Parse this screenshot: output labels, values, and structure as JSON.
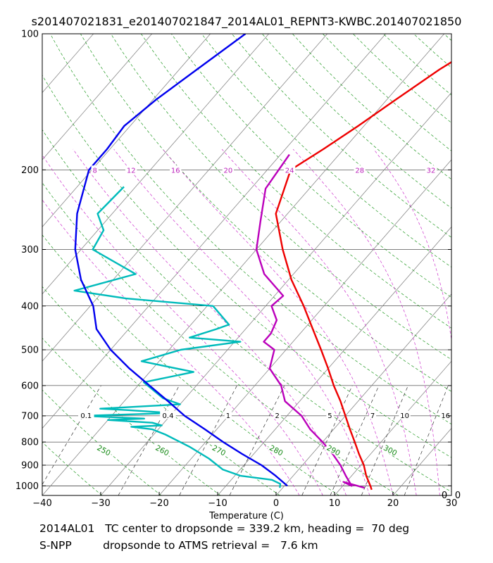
{
  "chart_data": {
    "type": "skew-t",
    "title": "s201407021831_e201407021847_2014AL01_REPNT3-KWBC.201407021850",
    "xlabel": "Temperature (C)",
    "ylabel": "",
    "xlim": [
      -40,
      30
    ],
    "ylim": [
      1050,
      100
    ],
    "x_ticks": [
      -40,
      -30,
      -20,
      -10,
      0,
      10,
      20,
      30
    ],
    "x_tick_labels": [
      "−40",
      "−30",
      "−20",
      "−10",
      "0",
      "10",
      "20",
      "30"
    ],
    "p_ticks": [
      100,
      200,
      300,
      400,
      500,
      600,
      700,
      800,
      900,
      1000
    ],
    "p_tick_labels": [
      "100",
      "200",
      "300",
      "400",
      "500",
      "600",
      "700",
      "800",
      "900",
      "1000"
    ],
    "corner_labels": [
      "0",
      "0"
    ],
    "mixing_ratio_labels": {
      "pressure": 700,
      "entries": [
        {
          "label": "0.1",
          "x": -32.5
        },
        {
          "label": "0.4",
          "x": -18.5
        },
        {
          "label": "1",
          "x": -8.2
        },
        {
          "label": "2",
          "x": 0.2
        },
        {
          "label": "5",
          "x": 9.2
        },
        {
          "label": "7",
          "x": 16.5
        },
        {
          "label": "10",
          "x": 22
        },
        {
          "label": "16",
          "x": 29
        }
      ]
    },
    "dry_adiabat_labels": {
      "entries": [
        {
          "label": "250",
          "x": -29.5,
          "p": 830
        },
        {
          "label": "260",
          "x": -19.5,
          "p": 830
        },
        {
          "label": "270",
          "x": -9.8,
          "p": 830
        },
        {
          "label": "280",
          "x": 0,
          "p": 830
        },
        {
          "label": "290",
          "x": 9.8,
          "p": 830
        },
        {
          "label": "300",
          "x": 19.5,
          "p": 830
        }
      ]
    },
    "moist_adiabat_labels": {
      "pressure": 200,
      "entries": [
        {
          "label": "8",
          "x": -31
        },
        {
          "label": "12",
          "x": -24.8
        },
        {
          "label": "16",
          "x": -17.2
        },
        {
          "label": "20",
          "x": -8.2
        },
        {
          "label": "24",
          "x": 2.3
        },
        {
          "label": "28",
          "x": 14.3
        },
        {
          "label": "32",
          "x": 26.5
        }
      ]
    },
    "series": [
      {
        "name": "Temperature",
        "color": "#ee0000",
        "points": [
          [
            100,
            -31
          ],
          [
            120,
            -35.5
          ],
          [
            140,
            -38.5
          ],
          [
            160,
            -41
          ],
          [
            180,
            -43.5
          ],
          [
            200,
            -46
          ],
          [
            250,
            -42
          ],
          [
            300,
            -35.5
          ],
          [
            350,
            -29.5
          ],
          [
            400,
            -23.5
          ],
          [
            450,
            -18.5
          ],
          [
            500,
            -14
          ],
          [
            550,
            -10
          ],
          [
            600,
            -6.5
          ],
          [
            650,
            -3
          ],
          [
            700,
            0
          ],
          [
            750,
            2.8
          ],
          [
            800,
            5.5
          ],
          [
            850,
            8
          ],
          [
            900,
            10.5
          ],
          [
            950,
            12.5
          ],
          [
            1000,
            14.7
          ],
          [
            1020,
            15.5
          ]
        ]
      },
      {
        "name": "Dewpoint",
        "color": "#00bbbb",
        "points": [
          [
            218,
            -72
          ],
          [
            250,
            -72.5
          ],
          [
            272,
            -69
          ],
          [
            300,
            -68
          ],
          [
            340,
            -57
          ],
          [
            370,
            -65
          ],
          [
            385,
            -55
          ],
          [
            400,
            -39
          ],
          [
            440,
            -33.5
          ],
          [
            450,
            -35
          ],
          [
            470,
            -38.3
          ],
          [
            480,
            -29
          ],
          [
            500,
            -38
          ],
          [
            530,
            -43
          ],
          [
            560,
            -32.5
          ],
          [
            590,
            -39.5
          ],
          [
            640,
            -33.8
          ],
          [
            660,
            -30
          ],
          [
            675,
            -43
          ],
          [
            680,
            -38
          ],
          [
            690,
            -30
          ],
          [
            700,
            -45
          ],
          [
            710,
            -34
          ],
          [
            715,
            -40
          ],
          [
            725,
            -32
          ],
          [
            735,
            -30
          ],
          [
            740,
            -35
          ],
          [
            750,
            -31
          ],
          [
            770,
            -28
          ],
          [
            820,
            -22
          ],
          [
            870,
            -17
          ],
          [
            920,
            -13
          ],
          [
            950,
            -9
          ],
          [
            970,
            -3
          ],
          [
            990,
            -1
          ],
          [
            1010,
            -0.5
          ]
        ]
      },
      {
        "name": "ATMS Temperature",
        "color": "#bb00bb",
        "points": [
          [
            185,
            -48.5
          ],
          [
            220,
            -47.5
          ],
          [
            260,
            -43.5
          ],
          [
            300,
            -40
          ],
          [
            340,
            -35
          ],
          [
            380,
            -28.5
          ],
          [
            400,
            -29
          ],
          [
            430,
            -26
          ],
          [
            460,
            -25
          ],
          [
            480,
            -25
          ],
          [
            500,
            -22
          ],
          [
            550,
            -20
          ],
          [
            600,
            -15.5
          ],
          [
            650,
            -12.5
          ],
          [
            700,
            -7.5
          ],
          [
            750,
            -4
          ],
          [
            800,
            0
          ],
          [
            850,
            3.5
          ],
          [
            900,
            6.5
          ],
          [
            950,
            9
          ],
          [
            1000,
            11.5
          ],
          [
            980,
            9.5
          ],
          [
            1010,
            14
          ]
        ]
      },
      {
        "name": "ATMS Dewpoint",
        "color": "#0000ee",
        "points": [
          [
            100,
            -74
          ],
          [
            120,
            -77
          ],
          [
            140,
            -79.5
          ],
          [
            160,
            -81
          ],
          [
            180,
            -80.5
          ],
          [
            200,
            -80.5
          ],
          [
            250,
            -76
          ],
          [
            300,
            -71
          ],
          [
            350,
            -65.5
          ],
          [
            400,
            -59.5
          ],
          [
            450,
            -55.5
          ],
          [
            500,
            -50
          ],
          [
            550,
            -44
          ],
          [
            600,
            -38
          ],
          [
            650,
            -32.5
          ],
          [
            700,
            -27.5
          ],
          [
            750,
            -22
          ],
          [
            800,
            -17
          ],
          [
            850,
            -12
          ],
          [
            900,
            -7
          ],
          [
            950,
            -3
          ],
          [
            1000,
            0.5
          ]
        ]
      }
    ]
  },
  "footer": {
    "line1": "2014AL01   TC center to dropsonde = 339.2 km, heading =  70 deg",
    "line2": "S-NPP         dropsonde to ATMS retrieval =   7.6 km"
  }
}
